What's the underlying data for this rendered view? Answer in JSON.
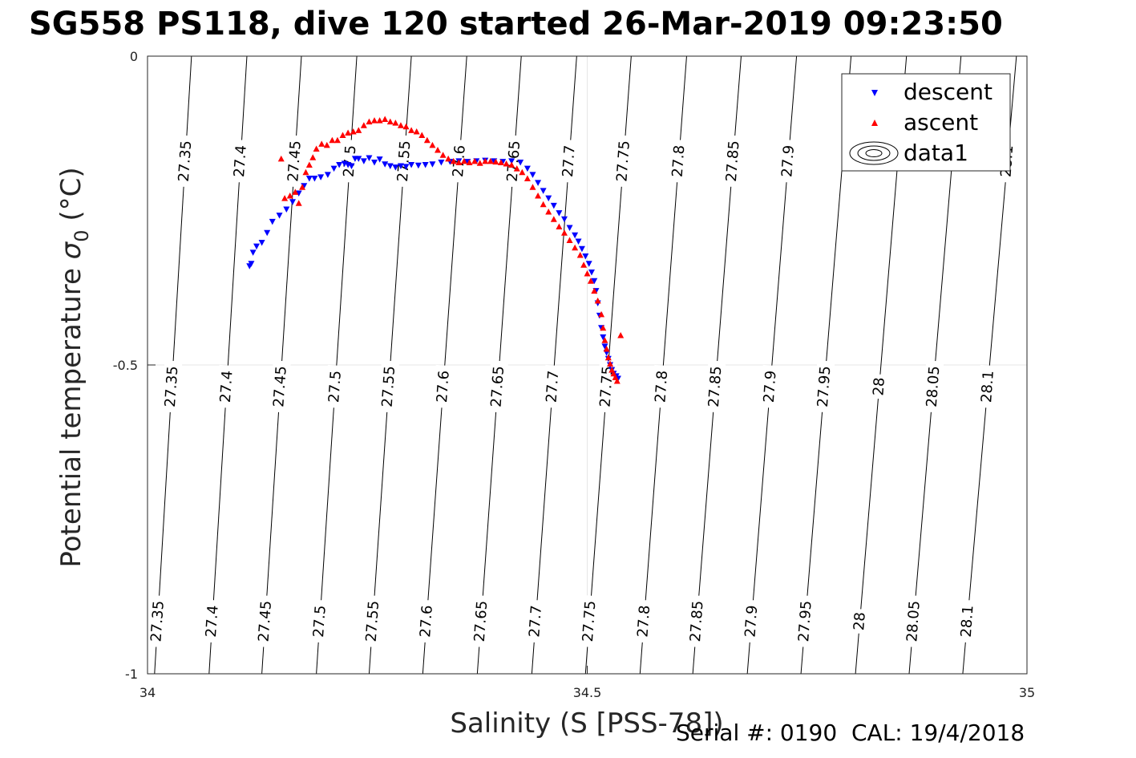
{
  "chart_data": {
    "type": "scatter",
    "title": "SG558 PS118, dive 120 started 26-Mar-2019 09:23:50",
    "xlabel": "Salinity (S [PSS-78])",
    "ylabel_prefix": "Potential temperature ",
    "ylabel_symbol": "σ",
    "ylabel_subscript": "0",
    "ylabel_suffix": " (°C)",
    "xlim": [
      34,
      35
    ],
    "ylim": [
      -1,
      0
    ],
    "xticks": [
      34,
      34.5,
      35
    ],
    "xtick_labels": [
      "34",
      "34.5",
      "35"
    ],
    "yticks": [
      0,
      -0.5,
      -1
    ],
    "ytick_labels": [
      "0",
      "-0.5",
      "-1"
    ],
    "grid": true,
    "legend_position": "top-right",
    "legend": [
      "descent",
      "ascent",
      "data1"
    ],
    "density_contours": {
      "levels": [
        27.35,
        27.4,
        27.45,
        27.5,
        27.55,
        27.6,
        27.65,
        27.7,
        27.75,
        27.8,
        27.85,
        27.9,
        27.95,
        28,
        28.05,
        28.1
      ],
      "labels": [
        "27.35",
        "27.4",
        "27.45",
        "27.5",
        "27.55",
        "27.6",
        "27.65",
        "27.7",
        "27.75",
        "27.8",
        "27.85",
        "27.9",
        "27.95",
        "28",
        "28.05",
        "28.1"
      ],
      "salinity_at_top": [
        34.05,
        34.113,
        34.175,
        34.238,
        34.3,
        34.363,
        34.425,
        34.488,
        34.55,
        34.613,
        34.675,
        34.738,
        34.8,
        34.863,
        34.925,
        34.988
      ],
      "salinity_at_bottom": [
        34.008,
        34.07,
        34.13,
        34.192,
        34.252,
        34.313,
        34.375,
        34.437,
        34.498,
        34.56,
        34.62,
        34.682,
        34.743,
        34.805,
        34.866,
        34.927
      ],
      "label_bands": [
        {
          "theta": -0.17,
          "levels": [
            "27.35",
            "27.4",
            "27.45",
            "27.5",
            "27.55",
            "27.6",
            "27.65",
            "27.7",
            "27.75",
            "27.8",
            "27.85",
            "27.9",
            "27.95",
            "28",
            "28.05",
            "28.1"
          ],
          "show": [
            true,
            true,
            true,
            true,
            true,
            true,
            true,
            true,
            true,
            true,
            true,
            true,
            false,
            false,
            false,
            true
          ]
        },
        {
          "theta": -0.535,
          "levels": [
            "27.35",
            "27.4",
            "27.45",
            "27.5",
            "27.55",
            "27.6",
            "27.65",
            "27.7",
            "27.75",
            "27.8",
            "27.85",
            "27.9",
            "27.95",
            "28",
            "28.05",
            "28.1"
          ],
          "show": [
            true,
            true,
            true,
            true,
            true,
            true,
            true,
            true,
            true,
            true,
            true,
            true,
            true,
            true,
            true,
            true
          ]
        },
        {
          "theta": -0.915,
          "levels": [
            "27.35",
            "27.4",
            "27.45",
            "27.5",
            "27.55",
            "27.6",
            "27.65",
            "27.7",
            "27.75",
            "27.8",
            "27.85",
            "27.9",
            "27.95",
            "28",
            "28.05",
            "28.1"
          ],
          "show": [
            true,
            true,
            true,
            true,
            true,
            true,
            true,
            true,
            true,
            true,
            true,
            true,
            true,
            true,
            true,
            true
          ]
        }
      ]
    },
    "series": [
      {
        "name": "descent",
        "color": "#0000ff",
        "marker": "triangle-down",
        "x": [
          34.116,
          34.118,
          34.12,
          34.124,
          34.13,
          34.136,
          34.142,
          34.15,
          34.158,
          34.165,
          34.172,
          34.178,
          34.184,
          34.19,
          34.197,
          34.205,
          34.212,
          34.218,
          34.224,
          34.228,
          34.232,
          34.236,
          34.24,
          34.246,
          34.252,
          34.258,
          34.264,
          34.27,
          34.276,
          34.282,
          34.288,
          34.294,
          34.3,
          34.308,
          34.316,
          34.324,
          34.334,
          34.344,
          34.354,
          34.364,
          34.374,
          34.384,
          34.394,
          34.404,
          34.414,
          34.424,
          34.432,
          34.438,
          34.444,
          34.45,
          34.456,
          34.462,
          34.468,
          34.474,
          34.48,
          34.486,
          34.49,
          34.494,
          34.498,
          34.502,
          34.505,
          34.508,
          34.51,
          34.512,
          34.514,
          34.516,
          34.518,
          34.52,
          34.522,
          34.524,
          34.526,
          34.528,
          34.53,
          34.533,
          34.535
        ],
        "y": [
          -0.34,
          -0.336,
          -0.318,
          -0.308,
          -0.302,
          -0.286,
          -0.268,
          -0.258,
          -0.248,
          -0.236,
          -0.222,
          -0.21,
          -0.198,
          -0.198,
          -0.196,
          -0.192,
          -0.182,
          -0.176,
          -0.174,
          -0.176,
          -0.178,
          -0.166,
          -0.166,
          -0.17,
          -0.165,
          -0.172,
          -0.167,
          -0.175,
          -0.178,
          -0.18,
          -0.178,
          -0.179,
          -0.176,
          -0.177,
          -0.176,
          -0.175,
          -0.172,
          -0.171,
          -0.17,
          -0.171,
          -0.17,
          -0.169,
          -0.17,
          -0.171,
          -0.17,
          -0.172,
          -0.182,
          -0.192,
          -0.205,
          -0.218,
          -0.23,
          -0.242,
          -0.254,
          -0.264,
          -0.278,
          -0.29,
          -0.3,
          -0.312,
          -0.324,
          -0.336,
          -0.35,
          -0.364,
          -0.38,
          -0.4,
          -0.42,
          -0.44,
          -0.455,
          -0.47,
          -0.48,
          -0.49,
          -0.5,
          -0.508,
          -0.514,
          -0.518,
          -0.522
        ]
      },
      {
        "name": "ascent",
        "color": "#ff0000",
        "marker": "triangle-up",
        "x": [
          34.152,
          34.156,
          34.162,
          34.168,
          34.172,
          34.176,
          34.18,
          34.184,
          34.188,
          34.192,
          34.198,
          34.204,
          34.21,
          34.216,
          34.222,
          34.228,
          34.234,
          34.24,
          34.246,
          34.252,
          34.258,
          34.264,
          34.27,
          34.276,
          34.282,
          34.288,
          34.294,
          34.3,
          34.306,
          34.312,
          34.318,
          34.324,
          34.33,
          34.336,
          34.342,
          34.348,
          34.354,
          34.36,
          34.366,
          34.372,
          34.378,
          34.384,
          34.39,
          34.396,
          34.402,
          34.408,
          34.414,
          34.42,
          34.426,
          34.432,
          34.438,
          34.444,
          34.45,
          34.456,
          34.462,
          34.468,
          34.474,
          34.48,
          34.486,
          34.492,
          34.496,
          34.5,
          34.504,
          34.508,
          34.512,
          34.516,
          34.518,
          34.52,
          34.522,
          34.524,
          34.526,
          34.528,
          34.53,
          34.532,
          34.534,
          34.538
        ],
        "y": [
          -0.166,
          -0.23,
          -0.226,
          -0.22,
          -0.238,
          -0.212,
          -0.188,
          -0.176,
          -0.164,
          -0.15,
          -0.142,
          -0.144,
          -0.136,
          -0.136,
          -0.128,
          -0.124,
          -0.122,
          -0.12,
          -0.112,
          -0.106,
          -0.104,
          -0.104,
          -0.102,
          -0.106,
          -0.108,
          -0.112,
          -0.114,
          -0.12,
          -0.122,
          -0.128,
          -0.136,
          -0.144,
          -0.152,
          -0.16,
          -0.166,
          -0.17,
          -0.172,
          -0.17,
          -0.172,
          -0.17,
          -0.173,
          -0.17,
          -0.17,
          -0.171,
          -0.172,
          -0.174,
          -0.176,
          -0.182,
          -0.188,
          -0.198,
          -0.212,
          -0.226,
          -0.24,
          -0.252,
          -0.264,
          -0.276,
          -0.286,
          -0.298,
          -0.31,
          -0.322,
          -0.338,
          -0.352,
          -0.364,
          -0.38,
          -0.396,
          -0.418,
          -0.44,
          -0.46,
          -0.474,
          -0.488,
          -0.498,
          -0.508,
          -0.514,
          -0.52,
          -0.526,
          -0.452
        ]
      }
    ]
  },
  "footer": {
    "serial": "Serial #: 0190  CAL: 19/4/2018"
  }
}
